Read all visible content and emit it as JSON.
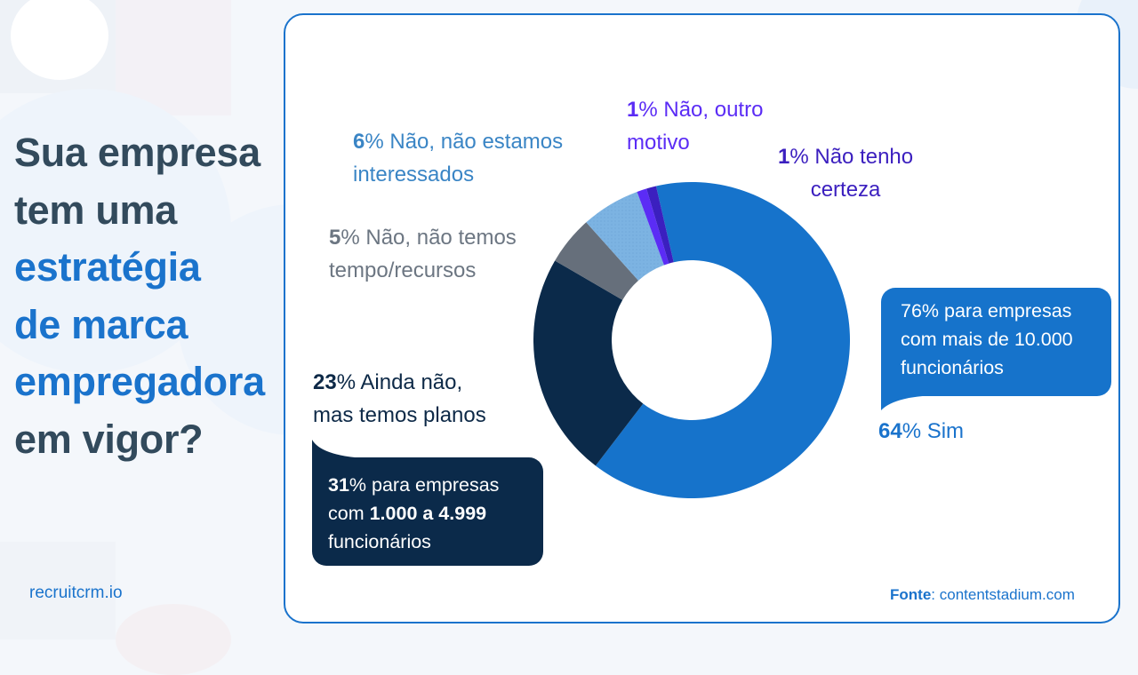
{
  "question": {
    "line1": "Sua empresa",
    "line2": "tem uma",
    "line3": "estratégia",
    "line4": "de marca",
    "line5": "empregadora",
    "line6": "em vigor?"
  },
  "brand": "recruitcrm.io",
  "source": {
    "label": "Fonte",
    "separator": ": ",
    "value": "contentstadium.com"
  },
  "colors": {
    "sim": "#1673cb",
    "ainda_nao": "#0b2a4a",
    "sem_tempo": "#666f7b",
    "nao_interessados": "#7cb3e2",
    "outro_motivo": "#5b2cf5",
    "nao_tenho_certeza": "#3b1fbf",
    "card_border": "#1a73cc",
    "title_dark": "#324a5c",
    "title_accent": "#1a73cc"
  },
  "labels": {
    "sim": {
      "pct": "64",
      "text": "% Sim"
    },
    "ainda_nao": {
      "pct": "23",
      "line1": "% Ainda não,",
      "line2": "mas temos planos"
    },
    "sem_tempo": {
      "pct": "5",
      "line1": "% Não, não temos",
      "line2": "tempo/recursos"
    },
    "nao_interessados": {
      "pct": "6",
      "line1": "% Não, não estamos",
      "line2": "interessados"
    },
    "outro_motivo": {
      "pct": "1",
      "line1": "% Não, outro",
      "line2": "motivo"
    },
    "nao_tenho_certeza": {
      "pct": "1",
      "line1": "% Não tenho",
      "line2": "certeza"
    }
  },
  "callouts": {
    "large_companies": {
      "line1": "76% para empresas",
      "line2": "com mais de 10.000",
      "line3": "funcionários"
    },
    "mid_companies": {
      "pct": "31",
      "line1_rest": "% para empresas",
      "line2_pre": "com ",
      "line2_bold": "1.000 a 4.999",
      "line3": "funcionários"
    }
  },
  "chart_data": {
    "type": "pie",
    "subtype": "donut",
    "title": "Sua empresa tem uma estratégia de marca empregadora em vigor?",
    "categories": [
      "Sim",
      "Ainda não, mas temos planos",
      "Não, não temos tempo/recursos",
      "Não, não estamos interessados",
      "Não, outro motivo",
      "Não tenho certeza"
    ],
    "values": [
      64,
      23,
      5,
      6,
      1,
      1
    ],
    "unit": "%",
    "colors": [
      "#1673cb",
      "#0b2a4a",
      "#666f7b",
      "#7cb3e2",
      "#5b2cf5",
      "#3b1fbf"
    ],
    "annotations": [
      "76% para empresas com mais de 10.000 funcionários (Sim)",
      "31% para empresas com 1.000 a 4.999 funcionários (Ainda não, mas temos planos)"
    ],
    "source": "Fonte: contentstadium.com"
  }
}
